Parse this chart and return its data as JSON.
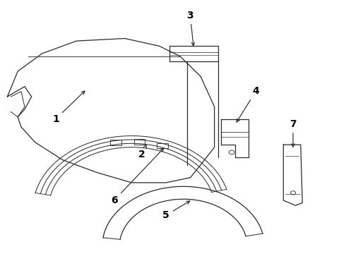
{
  "background_color": "#ffffff",
  "line_color": "#2a2a2a",
  "label_color": "#000000",
  "label_fontsize": 10,
  "lw": 0.9
}
